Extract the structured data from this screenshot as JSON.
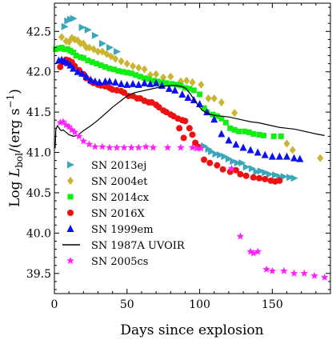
{
  "chart_data": {
    "type": "scatter",
    "xlabel": "Days since explosion",
    "ylabel": {
      "prefix": "Log ",
      "symbol": "L",
      "subscript": "bol",
      "middle": "/(erg s",
      "superscript": "−1",
      "suffix": ")"
    },
    "xlim": [
      0,
      190
    ],
    "ylim": [
      39.25,
      42.85
    ],
    "xticks": [
      "0",
      "50",
      "100",
      "150"
    ],
    "yticks": [
      "39.5",
      "40.0",
      "40.5",
      "41.0",
      "41.5",
      "42.0",
      "42.5"
    ],
    "legend_placement": "lower-left",
    "series": [
      {
        "name": "SN 2013ej",
        "marker": "triangle-right",
        "color": "#3aa6b9",
        "points": [
          [
            7,
            42.56
          ],
          [
            9,
            42.63
          ],
          [
            11,
            42.65
          ],
          [
            13,
            42.66
          ],
          [
            19,
            42.55
          ],
          [
            23,
            42.52
          ],
          [
            28,
            42.45
          ],
          [
            33,
            42.35
          ],
          [
            38,
            42.3
          ],
          [
            43,
            42.25
          ],
          [
            103,
            41.08
          ],
          [
            106,
            41.04
          ],
          [
            108,
            41.01
          ],
          [
            111,
            40.98
          ],
          [
            114,
            40.97
          ],
          [
            117,
            40.95
          ],
          [
            120,
            40.92
          ],
          [
            123,
            40.89
          ],
          [
            126,
            40.87
          ],
          [
            129,
            40.87
          ],
          [
            132,
            40.82
          ],
          [
            136,
            40.8
          ],
          [
            139,
            40.76
          ],
          [
            142,
            40.77
          ],
          [
            145,
            40.75
          ],
          [
            148,
            40.73
          ],
          [
            152,
            40.72
          ],
          [
            155,
            40.7
          ],
          [
            158,
            40.7
          ],
          [
            162,
            40.69
          ],
          [
            165,
            40.68
          ]
        ]
      },
      {
        "name": "SN 2004et",
        "marker": "diamond",
        "color": "#c9b52e",
        "points": [
          [
            5,
            42.43
          ],
          [
            8,
            42.38
          ],
          [
            10,
            42.37
          ],
          [
            12,
            42.42
          ],
          [
            14,
            42.4
          ],
          [
            16,
            42.39
          ],
          [
            18,
            42.35
          ],
          [
            20,
            42.35
          ],
          [
            22,
            42.3
          ],
          [
            24,
            42.3
          ],
          [
            27,
            42.28
          ],
          [
            30,
            42.25
          ],
          [
            33,
            42.25
          ],
          [
            36,
            42.22
          ],
          [
            39,
            42.19
          ],
          [
            42,
            42.16
          ],
          [
            46,
            42.13
          ],
          [
            50,
            42.1
          ],
          [
            54,
            42.07
          ],
          [
            58,
            42.05
          ],
          [
            62,
            42.03
          ],
          [
            66,
            41.96
          ],
          [
            70,
            41.97
          ],
          [
            75,
            41.93
          ],
          [
            80,
            41.94
          ],
          [
            87,
            41.88
          ],
          [
            91,
            41.89
          ],
          [
            95,
            41.87
          ],
          [
            101,
            41.84
          ],
          [
            106,
            41.67
          ],
          [
            110,
            41.67
          ],
          [
            115,
            41.62
          ],
          [
            124,
            41.49
          ],
          [
            160,
            41.11
          ],
          [
            164,
            41.03
          ],
          [
            183,
            40.93
          ]
        ]
      },
      {
        "name": "SN 2014cx",
        "marker": "square",
        "color": "#11ee11",
        "points": [
          [
            1,
            42.28
          ],
          [
            3,
            42.29
          ],
          [
            5,
            42.3
          ],
          [
            7,
            42.28
          ],
          [
            9,
            42.28
          ],
          [
            11,
            42.26
          ],
          [
            13,
            42.24
          ],
          [
            15,
            42.2
          ],
          [
            18,
            42.18
          ],
          [
            20,
            42.17
          ],
          [
            23,
            42.14
          ],
          [
            26,
            42.12
          ],
          [
            29,
            42.1
          ],
          [
            32,
            42.08
          ],
          [
            35,
            42.06
          ],
          [
            38,
            42.04
          ],
          [
            41,
            42.03
          ],
          [
            44,
            42.01
          ],
          [
            47,
            42.0
          ],
          [
            50,
            41.99
          ],
          [
            53,
            41.98
          ],
          [
            56,
            41.96
          ],
          [
            59,
            41.94
          ],
          [
            62,
            41.92
          ],
          [
            65,
            41.91
          ],
          [
            68,
            41.89
          ],
          [
            71,
            41.88
          ],
          [
            74,
            41.87
          ],
          [
            77,
            41.86
          ],
          [
            81,
            41.85
          ],
          [
            84,
            41.84
          ],
          [
            87,
            41.83
          ],
          [
            90,
            41.8
          ],
          [
            93,
            41.79
          ],
          [
            96,
            41.77
          ],
          [
            100,
            41.72
          ],
          [
            103,
            41.55
          ],
          [
            105,
            41.5
          ],
          [
            109,
            41.47
          ],
          [
            112,
            41.45
          ],
          [
            115,
            41.42
          ],
          [
            118,
            41.37
          ],
          [
            121,
            41.3
          ],
          [
            124,
            41.28
          ],
          [
            127,
            41.26
          ],
          [
            131,
            41.26
          ],
          [
            134,
            41.25
          ],
          [
            137,
            41.23
          ],
          [
            141,
            41.22
          ],
          [
            144,
            41.21
          ],
          [
            151,
            41.2
          ],
          [
            156,
            41.2
          ]
        ]
      },
      {
        "name": "SN 2016X",
        "marker": "circle",
        "color": "#ee1111",
        "points": [
          [
            4,
            42.06
          ],
          [
            6,
            42.12
          ],
          [
            8,
            42.15
          ],
          [
            10,
            42.14
          ],
          [
            12,
            42.12
          ],
          [
            14,
            42.07
          ],
          [
            17,
            42.02
          ],
          [
            20,
            41.97
          ],
          [
            22,
            41.92
          ],
          [
            25,
            41.88
          ],
          [
            27,
            41.86
          ],
          [
            30,
            41.84
          ],
          [
            32,
            41.83
          ],
          [
            35,
            41.82
          ],
          [
            38,
            41.8
          ],
          [
            40,
            41.78
          ],
          [
            43,
            41.77
          ],
          [
            46,
            41.76
          ],
          [
            48,
            41.74
          ],
          [
            51,
            41.7
          ],
          [
            54,
            41.7
          ],
          [
            57,
            41.67
          ],
          [
            59,
            41.67
          ],
          [
            62,
            41.64
          ],
          [
            65,
            41.62
          ],
          [
            67,
            41.62
          ],
          [
            70,
            41.59
          ],
          [
            72,
            41.56
          ],
          [
            75,
            41.52
          ],
          [
            77,
            41.5
          ],
          [
            80,
            41.47
          ],
          [
            82,
            41.45
          ],
          [
            85,
            41.42
          ],
          [
            88,
            41.4
          ],
          [
            90,
            41.39
          ],
          [
            93,
            41.3
          ],
          [
            95,
            41.22
          ],
          [
            97,
            41.12
          ],
          [
            99,
            41.07
          ],
          [
            103,
            40.91
          ],
          [
            107,
            40.87
          ],
          [
            112,
            40.84
          ],
          [
            116,
            40.79
          ],
          [
            121,
            40.76
          ],
          [
            125,
            40.78
          ],
          [
            128,
            40.73
          ],
          [
            132,
            40.71
          ],
          [
            137,
            40.69
          ],
          [
            141,
            40.68
          ],
          [
            145,
            40.67
          ],
          [
            149,
            40.65
          ],
          [
            152,
            40.64
          ],
          [
            155,
            40.65
          ],
          [
            86,
            41.3
          ],
          [
            89,
            41.18
          ]
        ]
      },
      {
        "name": "SN 1999em",
        "marker": "triangle-up",
        "color": "#0a10ee",
        "points": [
          [
            3,
            42.14
          ],
          [
            5,
            42.15
          ],
          [
            7,
            42.13
          ],
          [
            9,
            42.11
          ],
          [
            11,
            42.08
          ],
          [
            13,
            42.04
          ],
          [
            16,
            42.0
          ],
          [
            19,
            41.98
          ],
          [
            22,
            41.94
          ],
          [
            25,
            41.9
          ],
          [
            28,
            41.88
          ],
          [
            31,
            41.87
          ],
          [
            35,
            41.88
          ],
          [
            38,
            41.88
          ],
          [
            42,
            41.87
          ],
          [
            46,
            41.85
          ],
          [
            50,
            41.84
          ],
          [
            54,
            41.85
          ],
          [
            58,
            41.84
          ],
          [
            62,
            41.86
          ],
          [
            66,
            41.85
          ],
          [
            70,
            41.86
          ],
          [
            74,
            41.83
          ],
          [
            79,
            41.79
          ],
          [
            83,
            41.77
          ],
          [
            88,
            41.72
          ],
          [
            92,
            41.68
          ],
          [
            96,
            41.65
          ],
          [
            100,
            41.6
          ],
          [
            105,
            41.5
          ],
          [
            110,
            41.41
          ],
          [
            115,
            41.23
          ],
          [
            120,
            41.15
          ],
          [
            125,
            41.1
          ],
          [
            130,
            41.06
          ],
          [
            135,
            41.03
          ],
          [
            140,
            41.0
          ],
          [
            145,
            40.97
          ],
          [
            150,
            40.95
          ],
          [
            155,
            40.95
          ],
          [
            160,
            40.95
          ],
          [
            165,
            40.93
          ],
          [
            169,
            40.92
          ]
        ]
      },
      {
        "name": "SN 1987A UVOIR",
        "marker": "line",
        "color": "#000000",
        "points": [
          [
            0.5,
            41.05
          ],
          [
            1,
            41.28
          ],
          [
            2,
            41.33
          ],
          [
            3,
            41.31
          ],
          [
            4,
            41.28
          ],
          [
            5,
            41.27
          ],
          [
            6,
            41.28
          ],
          [
            8,
            41.25
          ],
          [
            10,
            41.22
          ],
          [
            13,
            41.2
          ],
          [
            16,
            41.21
          ],
          [
            20,
            41.27
          ],
          [
            25,
            41.33
          ],
          [
            30,
            41.4
          ],
          [
            35,
            41.48
          ],
          [
            40,
            41.56
          ],
          [
            45,
            41.63
          ],
          [
            50,
            41.7
          ],
          [
            55,
            41.74
          ],
          [
            60,
            41.76
          ],
          [
            65,
            41.78
          ],
          [
            70,
            41.8
          ],
          [
            75,
            41.82
          ],
          [
            80,
            41.83
          ],
          [
            84,
            41.83
          ],
          [
            87,
            41.82
          ],
          [
            90,
            41.8
          ],
          [
            93,
            41.74
          ],
          [
            96,
            41.66
          ],
          [
            99,
            41.58
          ],
          [
            102,
            41.52
          ],
          [
            106,
            41.48
          ],
          [
            110,
            41.46
          ],
          [
            115,
            41.45
          ],
          [
            120,
            41.44
          ],
          [
            125,
            41.42
          ],
          [
            130,
            41.4
          ],
          [
            135,
            41.38
          ],
          [
            140,
            41.37
          ],
          [
            145,
            41.35
          ],
          [
            150,
            41.33
          ],
          [
            155,
            41.31
          ],
          [
            160,
            41.3
          ],
          [
            165,
            41.29
          ],
          [
            170,
            41.27
          ],
          [
            175,
            41.25
          ],
          [
            180,
            41.23
          ],
          [
            186,
            41.21
          ]
        ]
      },
      {
        "name": "SN 2005cs",
        "marker": "star",
        "color": "#ff22ff",
        "points": [
          [
            4,
            41.37
          ],
          [
            6,
            41.38
          ],
          [
            8,
            41.34
          ],
          [
            10,
            41.32
          ],
          [
            12,
            41.28
          ],
          [
            14,
            41.25
          ],
          [
            17,
            41.2
          ],
          [
            20,
            41.14
          ],
          [
            24,
            41.1
          ],
          [
            28,
            41.07
          ],
          [
            33,
            41.07
          ],
          [
            38,
            41.06
          ],
          [
            43,
            41.06
          ],
          [
            48,
            41.06
          ],
          [
            53,
            41.06
          ],
          [
            58,
            41.06
          ],
          [
            63,
            41.07
          ],
          [
            68,
            41.06
          ],
          [
            78,
            41.06
          ],
          [
            87,
            41.06
          ],
          [
            95,
            41.06
          ],
          [
            98,
            41.05
          ],
          [
            101,
            41.05
          ],
          [
            122,
            40.8
          ],
          [
            128,
            39.96
          ],
          [
            135,
            39.77
          ],
          [
            137,
            39.75
          ],
          [
            140,
            39.77
          ],
          [
            146,
            39.55
          ],
          [
            150,
            39.53
          ],
          [
            158,
            39.53
          ],
          [
            165,
            39.5
          ],
          [
            172,
            39.5
          ],
          [
            179,
            39.47
          ],
          [
            186,
            39.45
          ]
        ]
      }
    ]
  }
}
